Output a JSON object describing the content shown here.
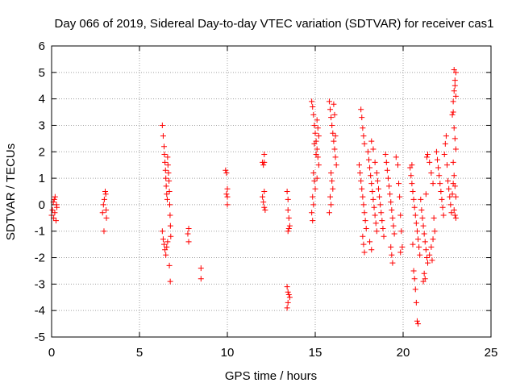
{
  "chart_data": {
    "type": "scatter",
    "title": "Day 066 of 2019, Sidereal Day-to-day VTEC variation (SDTVAR) for receiver cas1",
    "xlabel": "GPS time / hours",
    "ylabel": "SDTVAR / TECUs",
    "xlim": [
      0,
      25
    ],
    "ylim": [
      -5,
      6
    ],
    "xticks": [
      0,
      5,
      10,
      15,
      20,
      25
    ],
    "yticks": [
      -5,
      -4,
      -3,
      -2,
      -1,
      0,
      1,
      2,
      3,
      4,
      5,
      6
    ],
    "grid": true,
    "marker": "+",
    "color": "#ff0000",
    "series": [
      {
        "name": "SDTVAR",
        "points": [
          [
            0.0,
            -0.4
          ],
          [
            0.05,
            -0.2
          ],
          [
            0.1,
            0.1
          ],
          [
            0.12,
            -0.5
          ],
          [
            0.15,
            0.2
          ],
          [
            0.18,
            -0.3
          ],
          [
            0.2,
            0.3
          ],
          [
            0.25,
            -0.6
          ],
          [
            0.28,
            0.0
          ],
          [
            0.3,
            -0.1
          ],
          [
            2.9,
            -0.3
          ],
          [
            2.95,
            0.0
          ],
          [
            3.0,
            0.2
          ],
          [
            3.05,
            0.5
          ],
          [
            3.08,
            0.4
          ],
          [
            3.1,
            -0.2
          ],
          [
            3.12,
            -0.5
          ],
          [
            2.98,
            -1.0
          ],
          [
            6.3,
            3.0
          ],
          [
            6.35,
            2.6
          ],
          [
            6.4,
            2.2
          ],
          [
            6.42,
            1.9
          ],
          [
            6.45,
            1.6
          ],
          [
            6.48,
            1.3
          ],
          [
            6.5,
            1.0
          ],
          [
            6.52,
            0.7
          ],
          [
            6.55,
            0.4
          ],
          [
            6.58,
            0.2
          ],
          [
            6.6,
            1.8
          ],
          [
            6.62,
            1.5
          ],
          [
            6.65,
            1.2
          ],
          [
            6.68,
            0.9
          ],
          [
            6.7,
            0.5
          ],
          [
            6.72,
            0.0
          ],
          [
            6.74,
            -0.4
          ],
          [
            6.76,
            -0.8
          ],
          [
            6.78,
            -1.2
          ],
          [
            6.4,
            -1.5
          ],
          [
            6.45,
            -1.7
          ],
          [
            6.5,
            -1.9
          ],
          [
            6.55,
            -1.6
          ],
          [
            6.6,
            -1.4
          ],
          [
            6.7,
            -2.3
          ],
          [
            6.75,
            -2.9
          ],
          [
            6.3,
            -1.0
          ],
          [
            6.35,
            -1.3
          ],
          [
            7.8,
            -0.9
          ],
          [
            7.75,
            -1.1
          ],
          [
            7.8,
            -1.4
          ],
          [
            8.5,
            -2.4
          ],
          [
            8.5,
            -2.8
          ],
          [
            9.9,
            1.3
          ],
          [
            9.95,
            1.2
          ],
          [
            10.0,
            0.6
          ],
          [
            10.0,
            0.3
          ],
          [
            9.95,
            0.4
          ],
          [
            10.0,
            0.0
          ],
          [
            12.0,
            1.6
          ],
          [
            12.05,
            1.5
          ],
          [
            12.1,
            1.6
          ],
          [
            12.1,
            1.9
          ],
          [
            12.0,
            0.3
          ],
          [
            12.05,
            0.1
          ],
          [
            12.1,
            -0.1
          ],
          [
            12.15,
            -0.2
          ],
          [
            12.1,
            0.5
          ],
          [
            13.4,
            0.5
          ],
          [
            13.45,
            0.2
          ],
          [
            13.45,
            -0.2
          ],
          [
            13.5,
            -0.5
          ],
          [
            13.55,
            -0.8
          ],
          [
            13.5,
            -0.9
          ],
          [
            13.45,
            -1.0
          ],
          [
            13.4,
            -3.1
          ],
          [
            13.45,
            -3.3
          ],
          [
            13.5,
            -3.4
          ],
          [
            13.55,
            -3.5
          ],
          [
            13.45,
            -3.7
          ],
          [
            13.4,
            -3.9
          ],
          [
            14.8,
            3.9
          ],
          [
            14.85,
            3.7
          ],
          [
            14.9,
            3.4
          ],
          [
            14.95,
            3.0
          ],
          [
            15.0,
            2.7
          ],
          [
            15.05,
            2.4
          ],
          [
            15.1,
            2.1
          ],
          [
            15.15,
            1.8
          ],
          [
            15.2,
            1.5
          ],
          [
            14.9,
            1.2
          ],
          [
            14.95,
            0.9
          ],
          [
            15.0,
            0.6
          ],
          [
            14.85,
            0.3
          ],
          [
            14.9,
            0.0
          ],
          [
            14.8,
            -0.3
          ],
          [
            14.85,
            -0.6
          ],
          [
            15.1,
            3.2
          ],
          [
            15.15,
            2.9
          ],
          [
            15.2,
            2.6
          ],
          [
            15.05,
            1.9
          ],
          [
            14.95,
            2.3
          ],
          [
            15.1,
            1.0
          ],
          [
            15.8,
            3.9
          ],
          [
            15.85,
            3.6
          ],
          [
            15.9,
            3.3
          ],
          [
            15.95,
            3.0
          ],
          [
            16.0,
            2.7
          ],
          [
            16.05,
            2.4
          ],
          [
            16.1,
            2.1
          ],
          [
            16.15,
            1.8
          ],
          [
            16.2,
            1.5
          ],
          [
            15.9,
            1.2
          ],
          [
            15.95,
            0.9
          ],
          [
            16.0,
            0.6
          ],
          [
            15.85,
            0.3
          ],
          [
            15.9,
            0.0
          ],
          [
            15.8,
            -0.3
          ],
          [
            16.05,
            3.8
          ],
          [
            16.1,
            3.4
          ],
          [
            16.15,
            2.6
          ],
          [
            17.5,
            1.5
          ],
          [
            17.55,
            1.2
          ],
          [
            17.6,
            0.9
          ],
          [
            17.65,
            0.6
          ],
          [
            17.7,
            0.3
          ],
          [
            17.75,
            0.0
          ],
          [
            17.8,
            -0.3
          ],
          [
            17.85,
            -0.6
          ],
          [
            17.9,
            -0.9
          ],
          [
            17.6,
            3.6
          ],
          [
            17.65,
            3.3
          ],
          [
            17.7,
            2.9
          ],
          [
            17.75,
            2.6
          ],
          [
            17.8,
            2.3
          ],
          [
            17.7,
            -1.2
          ],
          [
            17.75,
            -1.5
          ],
          [
            17.8,
            -1.8
          ],
          [
            18.0,
            2.0
          ],
          [
            18.05,
            1.7
          ],
          [
            18.1,
            1.4
          ],
          [
            18.15,
            1.1
          ],
          [
            18.2,
            0.8
          ],
          [
            18.25,
            0.5
          ],
          [
            18.3,
            0.2
          ],
          [
            18.35,
            -0.1
          ],
          [
            18.4,
            -0.4
          ],
          [
            18.45,
            -0.7
          ],
          [
            18.5,
            -1.0
          ],
          [
            18.2,
            2.4
          ],
          [
            18.3,
            2.1
          ],
          [
            18.4,
            1.6
          ],
          [
            18.5,
            1.2
          ],
          [
            18.55,
            0.9
          ],
          [
            18.6,
            0.6
          ],
          [
            18.65,
            0.3
          ],
          [
            18.7,
            0.0
          ],
          [
            18.75,
            -0.3
          ],
          [
            18.8,
            -0.6
          ],
          [
            18.85,
            -0.9
          ],
          [
            18.9,
            -1.2
          ],
          [
            18.1,
            -1.4
          ],
          [
            18.2,
            -1.7
          ],
          [
            19.0,
            1.9
          ],
          [
            19.05,
            1.6
          ],
          [
            19.1,
            1.3
          ],
          [
            19.15,
            1.0
          ],
          [
            19.2,
            0.7
          ],
          [
            19.25,
            0.4
          ],
          [
            19.3,
            0.1
          ],
          [
            19.35,
            -0.2
          ],
          [
            19.4,
            -0.5
          ],
          [
            19.45,
            -0.8
          ],
          [
            19.5,
            -1.1
          ],
          [
            19.3,
            -1.6
          ],
          [
            19.35,
            -1.9
          ],
          [
            19.4,
            -2.2
          ],
          [
            19.6,
            1.8
          ],
          [
            19.7,
            1.5
          ],
          [
            19.75,
            0.8
          ],
          [
            19.8,
            0.3
          ],
          [
            19.85,
            -0.4
          ],
          [
            19.9,
            -1.0
          ],
          [
            19.95,
            -1.6
          ],
          [
            19.85,
            -1.8
          ],
          [
            20.4,
            1.4
          ],
          [
            20.45,
            1.1
          ],
          [
            20.5,
            0.8
          ],
          [
            20.55,
            0.5
          ],
          [
            20.6,
            0.2
          ],
          [
            20.65,
            -0.1
          ],
          [
            20.7,
            -0.4
          ],
          [
            20.75,
            -0.7
          ],
          [
            20.8,
            -1.0
          ],
          [
            20.85,
            -1.3
          ],
          [
            20.9,
            -1.6
          ],
          [
            20.95,
            -1.9
          ],
          [
            20.6,
            -2.5
          ],
          [
            20.65,
            -2.8
          ],
          [
            20.7,
            -3.2
          ],
          [
            20.75,
            -3.7
          ],
          [
            20.8,
            -4.4
          ],
          [
            20.85,
            -4.5
          ],
          [
            20.5,
            1.5
          ],
          [
            20.55,
            -1.5
          ],
          [
            21.0,
            0.2
          ],
          [
            21.05,
            -0.2
          ],
          [
            21.1,
            -0.5
          ],
          [
            21.15,
            -0.8
          ],
          [
            21.2,
            -1.1
          ],
          [
            21.25,
            -1.4
          ],
          [
            21.3,
            -1.7
          ],
          [
            21.35,
            -2.0
          ],
          [
            21.4,
            -2.2
          ],
          [
            21.2,
            -2.6
          ],
          [
            21.25,
            -2.8
          ],
          [
            21.15,
            -2.9
          ],
          [
            21.3,
            0.4
          ],
          [
            21.35,
            1.8
          ],
          [
            21.4,
            1.9
          ],
          [
            21.5,
            1.6
          ],
          [
            21.6,
            1.2
          ],
          [
            21.7,
            0.8
          ],
          [
            21.75,
            -0.5
          ],
          [
            21.8,
            -1.0
          ],
          [
            21.7,
            -1.3
          ],
          [
            21.6,
            -1.6
          ],
          [
            21.5,
            -1.9
          ],
          [
            21.65,
            -2.1
          ],
          [
            21.9,
            2.0
          ],
          [
            21.95,
            1.7
          ],
          [
            22.0,
            1.4
          ],
          [
            22.05,
            1.1
          ],
          [
            22.1,
            0.8
          ],
          [
            22.15,
            0.5
          ],
          [
            22.2,
            0.2
          ],
          [
            22.25,
            -0.1
          ],
          [
            22.3,
            -0.4
          ],
          [
            22.35,
            1.9
          ],
          [
            22.4,
            2.3
          ],
          [
            22.45,
            2.6
          ],
          [
            22.5,
            1.5
          ],
          [
            22.55,
            0.9
          ],
          [
            22.6,
            0.6
          ],
          [
            22.65,
            0.3
          ],
          [
            22.7,
            0.0
          ],
          [
            22.75,
            -0.3
          ],
          [
            22.8,
            3.4
          ],
          [
            22.85,
            3.9
          ],
          [
            22.9,
            4.3
          ],
          [
            22.95,
            4.7
          ],
          [
            23.0,
            5.0
          ],
          [
            22.9,
            5.1
          ],
          [
            22.95,
            4.5
          ],
          [
            23.0,
            4.1
          ],
          [
            22.85,
            3.5
          ],
          [
            22.9,
            2.9
          ],
          [
            22.95,
            2.5
          ],
          [
            23.0,
            2.1
          ],
          [
            22.85,
            1.6
          ],
          [
            22.9,
            1.1
          ],
          [
            22.95,
            0.7
          ],
          [
            23.0,
            0.3
          ],
          [
            22.9,
            -0.2
          ],
          [
            22.95,
            -0.4
          ],
          [
            23.0,
            -0.5
          ],
          [
            22.8,
            0.4
          ],
          [
            22.85,
            0.8
          ]
        ]
      }
    ]
  }
}
